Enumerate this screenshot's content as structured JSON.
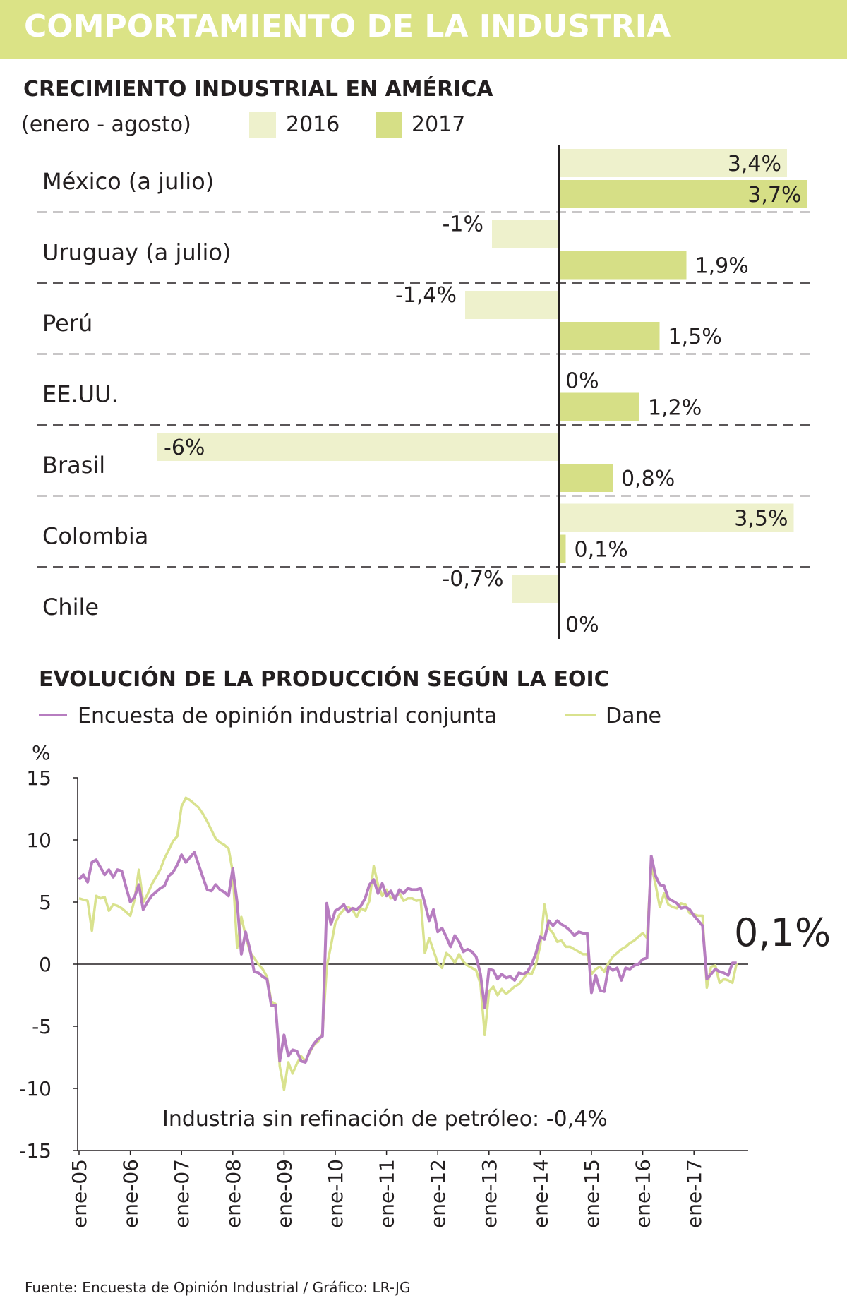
{
  "banner": {
    "title": "COMPORTAMIENTO DE LA INDUSTRIA"
  },
  "colors": {
    "banner": "#dbe386",
    "c2016": "#eef1cc",
    "c2017": "#d6df86",
    "eoic": "#b77dc0",
    "dane": "#d9e28e",
    "text": "#231f20"
  },
  "source": "Fuente: Encuesta de Opinión Industrial / Gráfico: LR-JG",
  "chart_data": [
    {
      "type": "bar",
      "title": "CRECIMIENTO INDUSTRIAL EN AMÉRICA",
      "subtitle": "(enero - agosto)",
      "legend": [
        "2016",
        "2017"
      ],
      "categories": [
        "México (a julio)",
        "Uruguay (a julio)",
        "Perú",
        "EE.UU.",
        "Brasil",
        "Colombia",
        "Chile"
      ],
      "series": [
        {
          "name": "2016",
          "values": [
            3.4,
            -1,
            -1.4,
            0,
            -6,
            3.5,
            -0.7
          ],
          "labels": [
            "3,4%",
            "-1%",
            "-1,4%",
            "0%",
            "-6%",
            "3,5%",
            "-0,7%"
          ]
        },
        {
          "name": "2017",
          "values": [
            3.7,
            1.9,
            1.5,
            1.2,
            0.8,
            0.1,
            0
          ],
          "labels": [
            "3,7%",
            "1,9%",
            "1,5%",
            "1,2%",
            "0,8%",
            "0,1%",
            "0%"
          ]
        }
      ],
      "xlim": [
        -6,
        3.7
      ]
    },
    {
      "type": "line",
      "title": "EVOLUCIÓN DE LA PRODUCCIÓN SEGÚN LA EOIC",
      "ylabel": "%",
      "ylim": [
        -15,
        15
      ],
      "yticks": [
        15,
        10,
        5,
        0,
        -5,
        -10,
        -15
      ],
      "x_ticks": [
        "ene-05",
        "ene-06",
        "ene-07",
        "ene-08",
        "ene-09",
        "ene-10",
        "ene-11",
        "ene-12",
        "ene-13",
        "ene-14",
        "ene-15",
        "ene-16",
        "ene-17"
      ],
      "x_range_months": [
        0,
        155
      ],
      "annotation": "Industria sin refinación de petróleo: -0,4%",
      "end_label": "0,1%",
      "series": [
        {
          "name": "Encuesta de opinión industrial conjunta",
          "values": [
            6.8,
            7.2,
            6.6,
            8.2,
            8.4,
            7.8,
            7.2,
            7.6,
            7.0,
            7.6,
            7.5,
            6.2,
            5.0,
            5.4,
            6.4,
            4.4,
            5.0,
            5.5,
            5.8,
            6.1,
            6.3,
            7.1,
            7.4,
            8.0,
            8.8,
            8.2,
            8.6,
            9.0,
            8.0,
            7.0,
            6.0,
            5.9,
            6.4,
            6.0,
            5.8,
            5.5,
            7.7,
            5.0,
            0.8,
            2.6,
            1.2,
            -0.6,
            -0.7,
            -1.0,
            -1.2,
            -3.3,
            -3.3,
            -7.8,
            -5.7,
            -7.4,
            -6.9,
            -7.0,
            -7.8,
            -7.9,
            -7.0,
            -6.4,
            -6.0,
            -5.8,
            4.9,
            3.2,
            4.3,
            4.5,
            4.8,
            4.2,
            4.5,
            4.4,
            4.7,
            5.3,
            6.4,
            6.8,
            5.7,
            6.5,
            5.5,
            5.9,
            5.2,
            6.0,
            5.7,
            6.1,
            6.0,
            6.0,
            6.1,
            4.9,
            3.5,
            4.4,
            2.6,
            2.9,
            2.2,
            1.4,
            2.3,
            1.8,
            1.0,
            1.2,
            1.0,
            0.6,
            -0.8,
            -3.5,
            -0.4,
            -0.5,
            -1.2,
            -0.8,
            -1.1,
            -1.0,
            -1.3,
            -0.7,
            -0.8,
            -0.6,
            0.0,
            0.9,
            2.2,
            2.0,
            3.5,
            3.1,
            3.5,
            3.2,
            3.0,
            2.7,
            2.3,
            2.6,
            2.5,
            2.5,
            -2.3,
            -0.9,
            -2.1,
            -2.2,
            -0.2,
            -0.5,
            -0.3,
            -1.3,
            -0.3,
            -0.4,
            -0.1,
            0.0,
            0.4,
            0.5,
            8.7,
            7.1,
            6.4,
            6.3,
            5.3,
            5.1,
            4.9,
            4.5,
            4.6,
            4.4,
            3.9,
            3.5,
            3.1,
            -1.2,
            -0.8,
            -0.4,
            -0.6,
            -0.7,
            -0.9,
            0.1,
            0.1
          ]
        },
        {
          "name": "Dane",
          "values": [
            5.3,
            5.2,
            5.1,
            2.7,
            5.5,
            5.3,
            5.4,
            4.3,
            4.8,
            4.7,
            4.5,
            4.2,
            3.9,
            5.2,
            7.6,
            5.0,
            5.6,
            6.4,
            7.0,
            7.6,
            8.5,
            9.2,
            9.9,
            10.3,
            12.7,
            13.4,
            13.2,
            12.9,
            12.6,
            12.1,
            11.5,
            10.8,
            10.1,
            9.8,
            9.6,
            9.3,
            7.4,
            1.3,
            3.8,
            2.3,
            1.0,
            0.5,
            0.0,
            -0.4,
            -1.0,
            -3.0,
            -3.2,
            -8.2,
            -10.1,
            -7.9,
            -8.8,
            -8.0,
            -7.4,
            -7.8,
            -7.1,
            -6.5,
            -6.2,
            -5.6,
            -0.2,
            1.5,
            3.3,
            4.0,
            4.4,
            4.6,
            4.4,
            3.8,
            4.5,
            4.3,
            5.1,
            7.9,
            6.4,
            5.5,
            6.0,
            5.3,
            5.4,
            5.7,
            5.1,
            5.3,
            5.3,
            5.1,
            5.2,
            0.9,
            2.1,
            1.1,
            0.1,
            -0.3,
            0.9,
            0.6,
            0.1,
            0.8,
            0.2,
            -0.1,
            -0.3,
            -0.5,
            -1.6,
            -5.7,
            -2.2,
            -1.8,
            -2.5,
            -2.0,
            -2.4,
            -2.1,
            -1.8,
            -1.6,
            -1.2,
            -0.7,
            -0.8,
            0.0,
            1.5,
            4.8,
            2.9,
            2.5,
            1.8,
            1.9,
            1.4,
            1.4,
            1.2,
            1.0,
            0.8,
            0.8,
            -0.8,
            -0.4,
            -0.2,
            -0.6,
            0.1,
            0.6,
            0.9,
            1.2,
            1.4,
            1.7,
            1.9,
            2.2,
            2.5,
            2.1,
            8.0,
            6.4,
            4.6,
            5.7,
            4.8,
            4.6,
            4.5,
            4.9,
            4.8,
            4.1,
            4.0,
            3.9,
            3.9,
            -1.9,
            -0.2,
            -0.1,
            -1.5,
            -1.2,
            -1.3,
            -1.5,
            0.1
          ]
        }
      ]
    }
  ]
}
